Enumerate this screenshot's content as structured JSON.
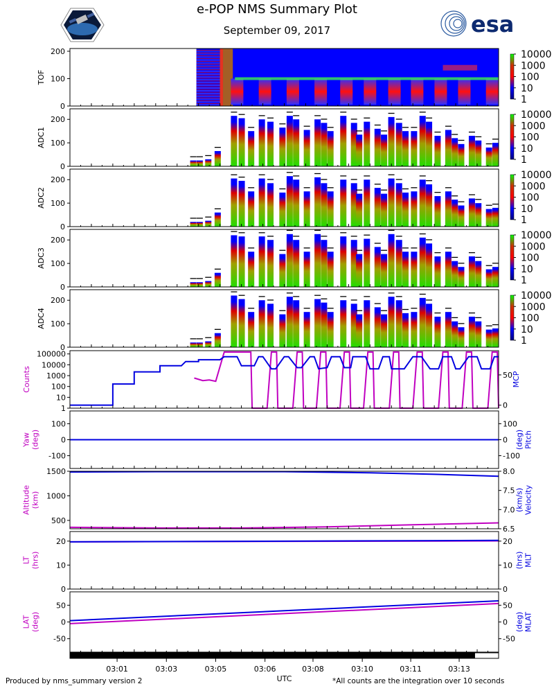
{
  "header": {
    "title": "e-POP NMS Summary Plot",
    "date": "September 09, 2017",
    "esa_logo_text": "esa"
  },
  "footer": {
    "left": "Produced by nms_summary version 2",
    "right": "*All counts are the integration over 10 seconds"
  },
  "chart_data": {
    "type": "heatmap",
    "x_axis": {
      "label": "UTC",
      "ticks": [
        "03:01",
        "03:03",
        "03:05",
        "03:06",
        "03:08",
        "03:10",
        "03:11",
        "03:13"
      ],
      "time_range": [
        "02:59:05",
        "03:14:55"
      ]
    },
    "coverage_bar": {
      "filled_fraction": [
        0.0,
        0.945
      ]
    },
    "spectrograms": [
      {
        "name": "TOF",
        "ylim": [
          0,
          210
        ],
        "yticks": [
          0,
          100,
          200
        ],
        "colorbar_labels": [
          "10000",
          "1000",
          "100",
          "10",
          "1"
        ]
      },
      {
        "name": "ADC1",
        "ylim": [
          0,
          245
        ],
        "yticks": [
          0,
          100,
          200
        ],
        "colorbar_labels": [
          "10000",
          "1000",
          "100",
          "10",
          "1"
        ]
      },
      {
        "name": "ADC2",
        "ylim": [
          0,
          245
        ],
        "yticks": [
          0,
          100,
          200
        ],
        "colorbar_labels": [
          "10000",
          "1000",
          "100",
          "10",
          "1"
        ]
      },
      {
        "name": "ADC3",
        "ylim": [
          0,
          245
        ],
        "yticks": [
          0,
          100,
          200
        ],
        "colorbar_labels": [
          "10000",
          "1000",
          "100",
          "10",
          "1"
        ]
      },
      {
        "name": "ADC4",
        "ylim": [
          0,
          245
        ],
        "yticks": [
          0,
          100,
          200
        ],
        "colorbar_labels": [
          "10000",
          "1000",
          "100",
          "10",
          "1"
        ]
      }
    ],
    "adc_bars": {
      "x_fraction": [
        0.295,
        0.31,
        0.33,
        0.352,
        0.39,
        0.408,
        0.43,
        0.455,
        0.475,
        0.503,
        0.52,
        0.535,
        0.56,
        0.585,
        0.6,
        0.615,
        0.645,
        0.67,
        0.682,
        0.7,
        0.725,
        0.74,
        0.757,
        0.775,
        0.79,
        0.81,
        0.83,
        0.845,
        0.865,
        0.89,
        0.905,
        0.92,
        0.945,
        0.96,
        0.985,
        1.0
      ],
      "ADC1": [
        25,
        25,
        30,
        65,
        215,
        205,
        150,
        200,
        190,
        165,
        215,
        200,
        155,
        200,
        185,
        150,
        215,
        185,
        135,
        190,
        160,
        135,
        210,
        185,
        150,
        150,
        215,
        190,
        130,
        155,
        120,
        95,
        130,
        110,
        80,
        100
      ],
      "ADC2": [
        20,
        20,
        25,
        60,
        205,
        195,
        150,
        205,
        185,
        145,
        215,
        200,
        150,
        210,
        185,
        150,
        200,
        185,
        140,
        200,
        165,
        140,
        205,
        185,
        145,
        150,
        200,
        180,
        130,
        150,
        115,
        90,
        120,
        100,
        75,
        80
      ],
      "ADC3": [
        20,
        20,
        25,
        60,
        220,
        215,
        150,
        215,
        200,
        140,
        225,
        200,
        150,
        225,
        200,
        150,
        215,
        200,
        140,
        205,
        170,
        140,
        225,
        200,
        150,
        150,
        210,
        185,
        130,
        150,
        110,
        85,
        130,
        110,
        75,
        85
      ],
      "ADC4": [
        20,
        20,
        25,
        60,
        220,
        205,
        150,
        200,
        185,
        140,
        215,
        200,
        150,
        205,
        190,
        150,
        200,
        185,
        140,
        200,
        170,
        140,
        215,
        200,
        145,
        150,
        210,
        185,
        130,
        150,
        110,
        85,
        130,
        110,
        75,
        80
      ]
    },
    "tof_peak": 100,
    "line_panels": [
      {
        "left_label": "Counts",
        "right_label": "MCP",
        "left_scale": "log",
        "left_ylim": [
          1,
          200000
        ],
        "left_ticks": [
          "1",
          "10",
          "100",
          "1000",
          "10000",
          "100000"
        ],
        "right_ylim": [
          -5,
          90
        ],
        "right_ticks": [
          "0",
          "50"
        ],
        "series": [
          {
            "name": "Counts",
            "color": "#c000c0",
            "axis": "left",
            "x_fraction": [
              0.29,
              0.31,
              0.325,
              0.34,
              0.36,
              0.363,
              0.4,
              0.41,
              0.422,
              0.425,
              0.46,
              0.47,
              0.482,
              0.485,
              0.52,
              0.53,
              0.542,
              0.545,
              0.575,
              0.585,
              0.597,
              0.6,
              0.63,
              0.64,
              0.652,
              0.655,
              0.685,
              0.695,
              0.707,
              0.71,
              0.745,
              0.755,
              0.767,
              0.77,
              0.8,
              0.81,
              0.822,
              0.825,
              0.86,
              0.87,
              0.882,
              0.885,
              0.915,
              0.925,
              0.937,
              0.94,
              0.975,
              0.985,
              0.997,
              1.0
            ],
            "y": [
              600,
              350,
              400,
              300,
              150000,
              150000,
              150000,
              150000,
              150000,
              1,
              1,
              150000,
              150000,
              1,
              1,
              150000,
              150000,
              1,
              1,
              150000,
              150000,
              1,
              1,
              150000,
              150000,
              1,
              1,
              150000,
              150000,
              1,
              1,
              150000,
              150000,
              1,
              1,
              150000,
              150000,
              1,
              1,
              150000,
              150000,
              1,
              1,
              150000,
              150000,
              1,
              1,
              150000,
              150000,
              1
            ]
          },
          {
            "name": "MCP",
            "color": "#0000e0",
            "axis": "right",
            "x_fraction": [
              0.0,
              0.08,
              0.1,
              0.1,
              0.15,
              0.15,
              0.21,
              0.21,
              0.21,
              0.26,
              0.27,
              0.3,
              0.3,
              0.35,
              0.36,
              0.39,
              0.4,
              0.43,
              0.44,
              0.45,
              0.47,
              0.48,
              0.5,
              0.51,
              0.53,
              0.54,
              0.56,
              0.57,
              0.58,
              0.6,
              0.61,
              0.63,
              0.64,
              0.655,
              0.66,
              0.69,
              0.7,
              0.72,
              0.73,
              0.745,
              0.75,
              0.78,
              0.8,
              0.82,
              0.84,
              0.86,
              0.87,
              0.89,
              0.9,
              0.91,
              0.93,
              0.95,
              0.96,
              0.98,
              0.99,
              1.0
            ],
            "y": [
              0,
              0,
              0,
              35,
              35,
              55,
              55,
              60,
              65,
              65,
              72,
              72,
              75,
              75,
              80,
              80,
              65,
              65,
              80,
              80,
              60,
              60,
              80,
              80,
              62,
              62,
              80,
              80,
              60,
              62,
              80,
              80,
              62,
              62,
              80,
              80,
              60,
              60,
              80,
              80,
              60,
              60,
              80,
              80,
              60,
              60,
              80,
              80,
              60,
              60,
              80,
              80,
              60,
              60,
              80,
              80
            ]
          }
        ]
      },
      {
        "left_label": "Yaw\n(deg)",
        "right_label": "Pitch\n(deg)",
        "left_ylim": [
          -180,
          180
        ],
        "left_ticks": [
          "-100",
          "0",
          "100"
        ],
        "right_ylim": [
          -180,
          180
        ],
        "right_ticks": [
          "-100",
          "0",
          "100"
        ],
        "series": [
          {
            "name": "Yaw",
            "color": "#c000c0",
            "axis": "left",
            "x_fraction": [
              0,
              1
            ],
            "y": [
              0,
              0
            ]
          },
          {
            "name": "Pitch",
            "color": "#0000e0",
            "axis": "right",
            "x_fraction": [
              0,
              1
            ],
            "y": [
              0,
              0
            ]
          }
        ]
      },
      {
        "left_label": "Altitude\n(km)",
        "right_label": "Velocity\n(km/s)",
        "left_ylim": [
          330,
          1500
        ],
        "left_ticks": [
          "500",
          "1000",
          "1500"
        ],
        "right_ylim": [
          6.5,
          8.0
        ],
        "right_ticks": [
          "6.5",
          "7.0",
          "7.5",
          "8.0"
        ],
        "series": [
          {
            "name": "Altitude",
            "color": "#c000c0",
            "axis": "left",
            "x_fraction": [
              0,
              0.2,
              0.4,
              0.6,
              0.8,
              1.0
            ],
            "y": [
              360,
              345,
              345,
              370,
              410,
              450
            ]
          },
          {
            "name": "Velocity",
            "color": "#0000e0",
            "axis": "right",
            "x_fraction": [
              0,
              0.2,
              0.5,
              0.7,
              0.85,
              1.0
            ],
            "y": [
              7.98,
              7.99,
              7.99,
              7.96,
              7.92,
              7.87
            ]
          }
        ]
      },
      {
        "left_label": "LT\n(hrs)",
        "right_label": "MLT\n(hrs)",
        "left_ylim": [
          0,
          24
        ],
        "left_ticks": [
          "0",
          "10",
          "20"
        ],
        "right_ylim": [
          0,
          24
        ],
        "right_ticks": [
          "0",
          "10",
          "20"
        ],
        "series": [
          {
            "name": "LT",
            "color": "#c000c0",
            "axis": "left",
            "x_fraction": [
              0,
              1
            ],
            "y": [
              19.7,
              20.1
            ]
          },
          {
            "name": "MLT",
            "color": "#0000e0",
            "axis": "right",
            "x_fraction": [
              0,
              1
            ],
            "y": [
              19.7,
              20.3
            ]
          }
        ]
      },
      {
        "left_label": "LAT\n(deg)",
        "right_label": "MLAT\n(deg)",
        "left_ylim": [
          -90,
          90
        ],
        "left_ticks": [
          "-50",
          "0",
          "50"
        ],
        "right_ylim": [
          -90,
          90
        ],
        "right_ticks": [
          "-50",
          "0",
          "50"
        ],
        "series": [
          {
            "name": "LAT",
            "color": "#c000c0",
            "axis": "left",
            "x_fraction": [
              0,
              1
            ],
            "y": [
              -5,
              55
            ]
          },
          {
            "name": "MLAT",
            "color": "#0000e0",
            "axis": "right",
            "x_fraction": [
              0,
              1
            ],
            "y": [
              4,
              63
            ]
          }
        ]
      }
    ]
  }
}
